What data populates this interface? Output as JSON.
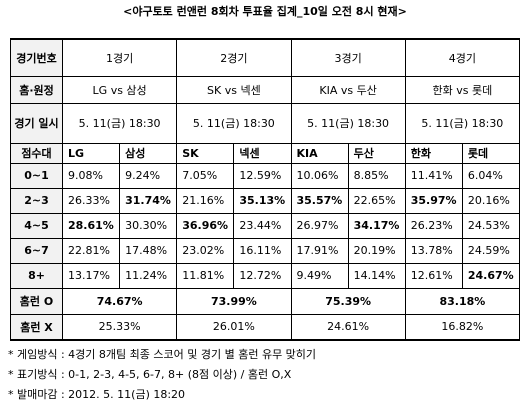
{
  "title": "<야구토토 런앤런 8회차 투표율 집계_10일 오전 8시 현재>",
  "table": {
    "header": {
      "label": "경기번호",
      "games": [
        "1경기",
        "2경기",
        "3경기",
        "4경기"
      ]
    },
    "matchups": {
      "label": "홈·원정",
      "values": [
        "LG vs 삼성",
        "SK vs 넥센",
        "KIA vs 두산",
        "한화 vs 롯데"
      ]
    },
    "dates": {
      "label": "경기 일시",
      "values": [
        "5. 11(금) 18:30",
        "5. 11(금) 18:30",
        "5. 11(금) 18:30",
        "5. 11(금) 18:30"
      ]
    },
    "teams": {
      "label": "점수대",
      "values": [
        "LG",
        "삼성",
        "SK",
        "넥센",
        "KIA",
        "두산",
        "한화",
        "롯데"
      ]
    },
    "rows": [
      {
        "label": "0~1",
        "values": [
          "9.08%",
          "9.24%",
          "7.05%",
          "12.59%",
          "10.06%",
          "8.85%",
          "11.41%",
          "6.04%"
        ]
      },
      {
        "label": "2~3",
        "values": [
          "26.33%",
          "31.74%",
          "21.16%",
          "35.13%",
          "35.57%",
          "22.65%",
          "35.97%",
          "20.16%"
        ]
      },
      {
        "label": "4~5",
        "values": [
          "28.61%",
          "30.30%",
          "36.96%",
          "23.44%",
          "26.97%",
          "34.17%",
          "26.23%",
          "24.53%"
        ]
      },
      {
        "label": "6~7",
        "values": [
          "22.81%",
          "17.48%",
          "23.02%",
          "16.11%",
          "17.91%",
          "20.19%",
          "13.78%",
          "24.59%"
        ]
      },
      {
        "label": "8+",
        "values": [
          "13.17%",
          "11.24%",
          "11.81%",
          "12.72%",
          "9.49%",
          "14.14%",
          "12.61%",
          "24.67%"
        ]
      }
    ],
    "homerun_yes": {
      "label": "홈런 O",
      "values": [
        "74.67%",
        "73.99%",
        "75.39%",
        "83.18%"
      ]
    },
    "homerun_no": {
      "label": "홈런 X",
      "values": [
        "25.33%",
        "26.01%",
        "24.61%",
        "16.82%"
      ]
    }
  },
  "notes": [
    "* 게임방식 : 4경기 8개팀 최종 스코어 및 경기 별 홈런 유무 맞히기",
    "* 표기방식 : 0-1, 2-3, 4-5, 6-7, 8+ (8점 이상) / 홈런 O,X",
    "* 발매마감 : 2012. 5. 11(금) 18:20"
  ]
}
